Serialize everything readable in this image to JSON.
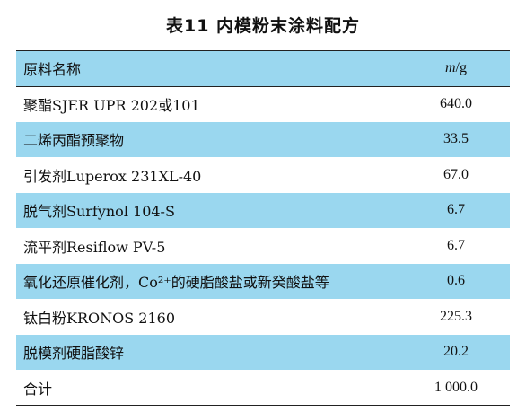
{
  "title": "表11  内模粉末涂料配方",
  "header": {
    "name": "原料名称",
    "unit_italic": "m",
    "unit_rest": "/g"
  },
  "rows": [
    {
      "name": "聚酯SJER UPR 202或101",
      "value": "640.0",
      "shaded": false
    },
    {
      "name": "二烯丙酯预聚物",
      "value": "33.5",
      "shaded": true
    },
    {
      "name": "引发剂Luperox 231XL-40",
      "value": "67.0",
      "shaded": false
    },
    {
      "name": "脱气剂Surfynol 104-S",
      "value": "6.7",
      "shaded": true
    },
    {
      "name": "流平剂Resiflow PV-5",
      "value": "6.7",
      "shaded": false
    },
    {
      "name": "氧化还原催化剂，Co²⁺的硬脂酸盐或新癸酸盐等",
      "value": "0.6",
      "shaded": true
    },
    {
      "name": "钛白粉KRONOS 2160",
      "value": "225.3",
      "shaded": false
    },
    {
      "name": "脱模剂硬脂酸锌",
      "value": "20.2",
      "shaded": true
    },
    {
      "name": "合计",
      "value": "1 000.0",
      "shaded": false
    }
  ]
}
